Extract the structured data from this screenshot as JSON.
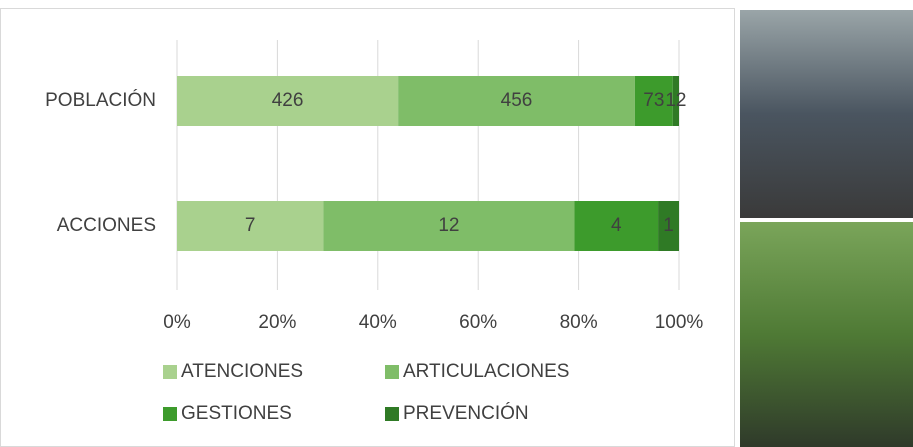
{
  "chart_data": {
    "type": "bar",
    "orientation": "horizontal",
    "stacked": "percent",
    "categories": [
      "POBLACIÓN",
      "ACCIONES"
    ],
    "series": [
      {
        "name": "ATENCIONES",
        "color": "#a9d18e",
        "values": [
          426,
          7
        ]
      },
      {
        "name": "ARTICULACIONES",
        "color": "#7fbd68",
        "values": [
          456,
          12
        ]
      },
      {
        "name": "GESTIONES",
        "color": "#3d9b2c",
        "values": [
          73,
          4
        ]
      },
      {
        "name": "PREVENCIÓN",
        "color": "#2f7a25",
        "values": [
          12,
          1
        ]
      }
    ],
    "xlim": [
      0,
      100
    ],
    "xticks": [
      {
        "value": 0,
        "label": "0%"
      },
      {
        "value": 20,
        "label": "20%"
      },
      {
        "value": 40,
        "label": "40%"
      },
      {
        "value": 60,
        "label": "60%"
      },
      {
        "value": 80,
        "label": "80%"
      },
      {
        "value": 100,
        "label": "100%"
      }
    ],
    "grid": true,
    "legend": "bottom"
  }
}
